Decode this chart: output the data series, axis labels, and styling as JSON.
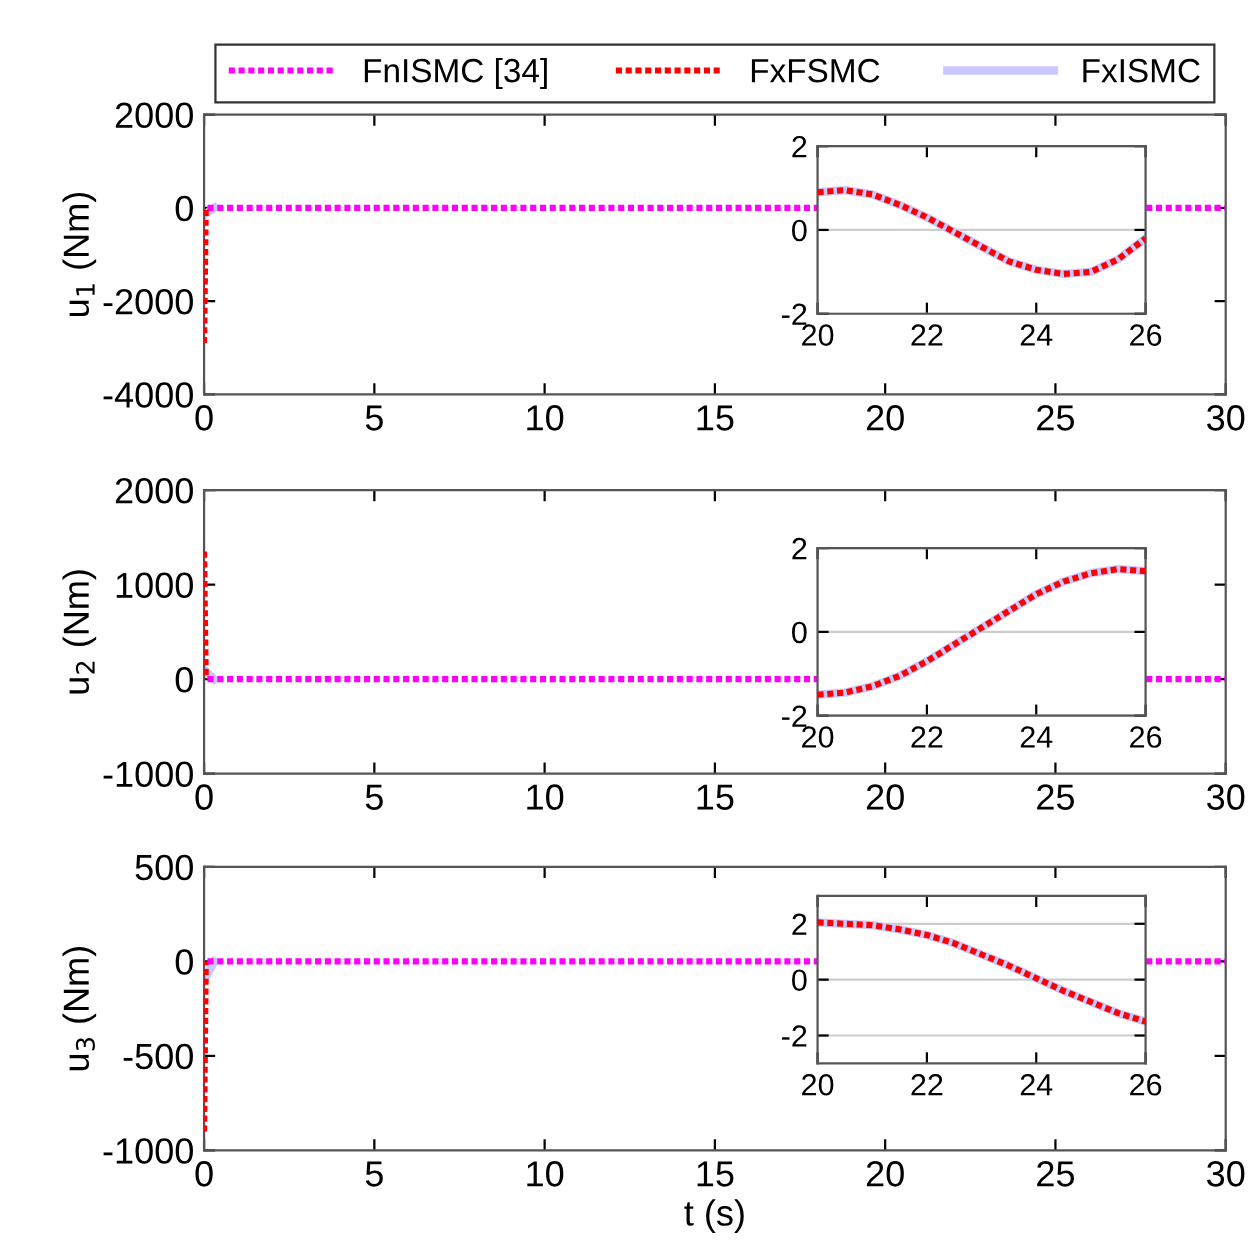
{
  "chart_data": [
    {
      "type": "line",
      "ylabel": "u$_{1}$ (Nm)",
      "xlim": [
        0,
        30
      ],
      "xticks": [
        0,
        5,
        10,
        15,
        20,
        25,
        30
      ],
      "ylim": [
        -4000,
        2000
      ],
      "yticks": [
        -4000,
        -2000,
        0,
        2000
      ],
      "legend": "top",
      "line_style": "dotted",
      "series": [
        {
          "name": "FnISMC [34]",
          "color": "#ff00ff",
          "x": [
            0.1,
            30
          ],
          "values": [
            0,
            0
          ]
        },
        {
          "name": "FxFSMC",
          "color": "#ff0000",
          "x": [
            0,
            0.05
          ],
          "values": [
            -2900,
            0
          ]
        },
        {
          "name": "FxISMC",
          "color": "#c8c8ff",
          "line_style": "solid",
          "x": [
            0,
            0.3
          ],
          "values": [
            -150,
            0
          ]
        }
      ]
    },
    {
      "type": "line",
      "xlim": [
        20,
        26
      ],
      "xticks": [
        20,
        22,
        24,
        26
      ],
      "ylim": [
        -2,
        2
      ],
      "yticks": [
        -2,
        0,
        2
      ],
      "grid": "y",
      "line_style": "dotted",
      "series": [
        {
          "color": "#c8c8ff",
          "line_style": "solid",
          "x": [
            20,
            20.5,
            21,
            21.5,
            22,
            22.5,
            23,
            23.5,
            24,
            24.5,
            25,
            25.5,
            26
          ],
          "values": [
            0.9,
            0.95,
            0.85,
            0.6,
            0.3,
            -0.05,
            -0.4,
            -0.75,
            -0.95,
            -1.05,
            -1.0,
            -0.7,
            -0.2
          ]
        },
        {
          "color": "#ff0000",
          "x": [
            20,
            20.5,
            21,
            21.5,
            22,
            22.5,
            23,
            23.5,
            24,
            24.5,
            25,
            25.5,
            26
          ],
          "values": [
            0.9,
            0.95,
            0.85,
            0.6,
            0.3,
            -0.05,
            -0.4,
            -0.75,
            -0.95,
            -1.05,
            -1.0,
            -0.7,
            -0.2
          ]
        }
      ]
    },
    {
      "type": "line",
      "ylabel": "u$_{2}$ (Nm)",
      "xlim": [
        0,
        30
      ],
      "xticks": [
        0,
        5,
        10,
        15,
        20,
        25,
        30
      ],
      "ylim": [
        -1000,
        2000
      ],
      "yticks": [
        -1000,
        0,
        1000,
        2000
      ],
      "line_style": "dotted",
      "series": [
        {
          "color": "#ff0000",
          "x": [
            0,
            0.05
          ],
          "values": [
            1350,
            0
          ]
        },
        {
          "color": "#ff00ff",
          "x": [
            0.1,
            30
          ],
          "values": [
            0,
            0
          ]
        },
        {
          "color": "#c8c8ff",
          "line_style": "solid",
          "x": [
            0,
            0.3
          ],
          "values": [
            100,
            0
          ]
        }
      ]
    },
    {
      "type": "line",
      "xlim": [
        20,
        26
      ],
      "xticks": [
        20,
        22,
        24,
        26
      ],
      "ylim": [
        -2,
        2
      ],
      "yticks": [
        -2,
        0,
        2
      ],
      "grid": "y",
      "line_style": "dotted",
      "series": [
        {
          "color": "#c8c8ff",
          "line_style": "solid",
          "x": [
            20,
            20.5,
            21,
            21.5,
            22,
            22.5,
            23,
            23.5,
            24,
            24.5,
            25,
            25.5,
            26
          ],
          "values": [
            -1.5,
            -1.45,
            -1.3,
            -1.05,
            -0.7,
            -0.3,
            0.1,
            0.5,
            0.9,
            1.2,
            1.4,
            1.5,
            1.45
          ]
        },
        {
          "color": "#ff0000",
          "x": [
            20,
            20.5,
            21,
            21.5,
            22,
            22.5,
            23,
            23.5,
            24,
            24.5,
            25,
            25.5,
            26
          ],
          "values": [
            -1.5,
            -1.45,
            -1.3,
            -1.05,
            -0.7,
            -0.3,
            0.1,
            0.5,
            0.9,
            1.2,
            1.4,
            1.5,
            1.45
          ]
        }
      ]
    },
    {
      "type": "line",
      "xlabel": "t (s)",
      "ylabel": "u$_{3}$ (Nm)",
      "xlim": [
        0,
        30
      ],
      "xticks": [
        0,
        5,
        10,
        15,
        20,
        25,
        30
      ],
      "ylim": [
        -1000,
        500
      ],
      "yticks": [
        -1000,
        -500,
        0,
        500
      ],
      "line_style": "dotted",
      "series": [
        {
          "color": "#ff0000",
          "x": [
            0,
            0.05
          ],
          "values": [
            -900,
            0
          ]
        },
        {
          "color": "#ff00ff",
          "x": [
            0.1,
            30
          ],
          "values": [
            0,
            0
          ]
        },
        {
          "color": "#c8c8ff",
          "line_style": "solid",
          "x": [
            0,
            0.3
          ],
          "values": [
            -100,
            0
          ]
        }
      ]
    },
    {
      "type": "line",
      "xlim": [
        20,
        26
      ],
      "xticks": [
        20,
        22,
        24,
        26
      ],
      "ylim": [
        -3,
        3
      ],
      "yticks": [
        -2,
        0,
        2
      ],
      "grid": "y",
      "line_style": "dotted",
      "series": [
        {
          "color": "#c8c8ff",
          "line_style": "solid",
          "x": [
            20,
            20.5,
            21,
            21.5,
            22,
            22.5,
            23,
            23.5,
            24,
            24.5,
            25,
            25.5,
            26
          ],
          "values": [
            2.05,
            2.0,
            1.95,
            1.8,
            1.6,
            1.3,
            0.9,
            0.5,
            0.05,
            -0.4,
            -0.8,
            -1.2,
            -1.5
          ]
        },
        {
          "color": "#ff0000",
          "x": [
            20,
            20.5,
            21,
            21.5,
            22,
            22.5,
            23,
            23.5,
            24,
            24.5,
            25,
            25.5,
            26
          ],
          "values": [
            2.05,
            2.0,
            1.95,
            1.8,
            1.6,
            1.3,
            0.9,
            0.5,
            0.05,
            -0.4,
            -0.8,
            -1.2,
            -1.5
          ]
        }
      ]
    }
  ]
}
